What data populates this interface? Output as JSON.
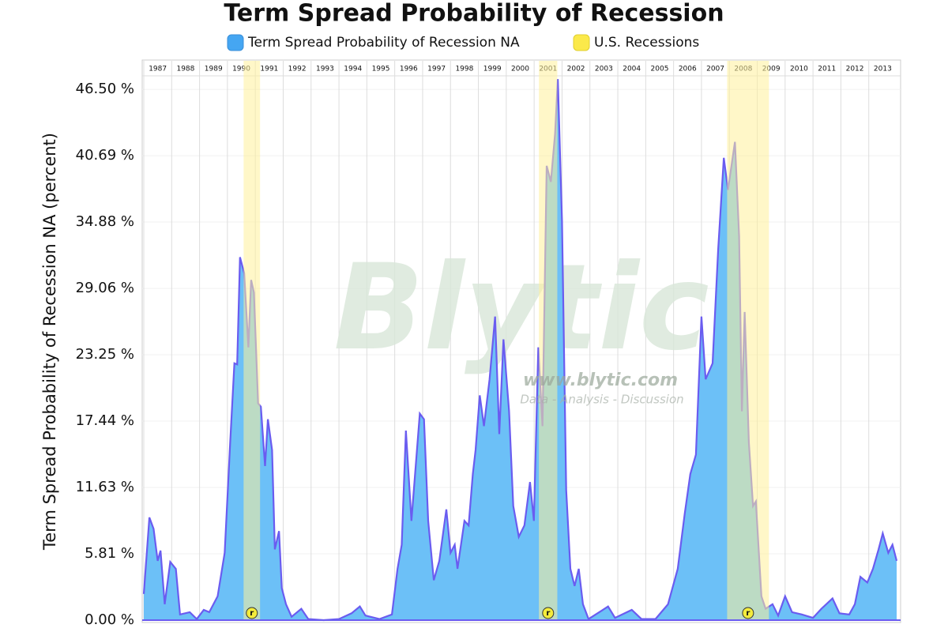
{
  "chart_data": {
    "type": "area",
    "title": "Term Spread Probability of Recession",
    "y_label": "Term Spread Probability of Recession NA (percent)",
    "x": [
      1987.0,
      1987.2,
      1987.35,
      1987.5,
      1987.6,
      1987.75,
      1987.95,
      1988.15,
      1988.3,
      1988.65,
      1988.9,
      1989.15,
      1989.35,
      1989.65,
      1989.9,
      1990.1,
      1990.25,
      1990.35,
      1990.45,
      1990.6,
      1990.75,
      1990.85,
      1990.95,
      1991.1,
      1991.2,
      1991.35,
      1991.45,
      1991.6,
      1991.7,
      1991.85,
      1991.95,
      1992.1,
      1992.3,
      1992.65,
      1992.9,
      1993.45,
      1994.0,
      1994.45,
      1994.75,
      1994.95,
      1995.45,
      1995.9,
      1996.1,
      1996.25,
      1996.4,
      1996.6,
      1996.9,
      1997.05,
      1997.2,
      1997.4,
      1997.6,
      1997.85,
      1998.0,
      1998.15,
      1998.25,
      1998.5,
      1998.65,
      1998.8,
      1998.9,
      1999.05,
      1999.2,
      1999.4,
      1999.6,
      1999.75,
      1999.9,
      2000.1,
      2000.25,
      2000.45,
      2000.65,
      2000.85,
      2000.99,
      2001.15,
      2001.3,
      2001.45,
      2001.6,
      2001.75,
      2001.85,
      2002.0,
      2002.15,
      2002.3,
      2002.45,
      2002.6,
      2002.75,
      2002.95,
      2003.65,
      2003.9,
      2004.5,
      2004.85,
      2005.35,
      2005.8,
      2006.15,
      2006.4,
      2006.6,
      2006.8,
      2007.0,
      2007.15,
      2007.4,
      2007.6,
      2007.8,
      2007.95,
      2008.2,
      2008.35,
      2008.45,
      2008.55,
      2008.7,
      2008.85,
      2008.95,
      2009.15,
      2009.3,
      2009.55,
      2009.75,
      2010.0,
      2010.25,
      2010.6,
      2011.0,
      2011.3,
      2011.7,
      2011.95,
      2012.3,
      2012.5,
      2012.7,
      2012.95,
      2013.15,
      2013.35,
      2013.5,
      2013.7,
      2013.85,
      2014.0
    ],
    "series": [
      {
        "name": "Term Spread Probability of Recession NA",
        "color": "#6cc0f7",
        "line_color": "#6a5cf0",
        "legend_color": "#45a6f2",
        "values": [
          2.3,
          9.0,
          8.0,
          5.2,
          6.1,
          1.4,
          5.1,
          4.5,
          0.5,
          0.7,
          0.1,
          0.9,
          0.7,
          2.1,
          5.9,
          15.6,
          22.5,
          22.4,
          31.8,
          30.4,
          23.9,
          29.8,
          28.7,
          19.0,
          18.7,
          13.5,
          17.6,
          14.9,
          6.2,
          7.8,
          2.8,
          1.4,
          0.3,
          1.0,
          0.1,
          0,
          0.1,
          0.6,
          1.2,
          0.4,
          0.1,
          0.5,
          4.5,
          6.6,
          16.6,
          8.7,
          18.1,
          17.6,
          8.7,
          3.5,
          5.2,
          9.7,
          5.9,
          6.6,
          4.5,
          8.7,
          8.3,
          12.8,
          14.9,
          19.7,
          17.0,
          21.1,
          26.6,
          16.3,
          24.6,
          18.3,
          10.0,
          7.3,
          8.3,
          12.1,
          8.7,
          23.9,
          17.0,
          39.8,
          38.4,
          42.6,
          47.4,
          35.0,
          11.4,
          4.5,
          3.0,
          4.5,
          1.4,
          0.1,
          1.2,
          0.2,
          0.9,
          0.1,
          0.1,
          1.4,
          4.5,
          9.3,
          12.8,
          14.5,
          26.6,
          21.1,
          22.5,
          32.5,
          40.5,
          37.7,
          41.9,
          33.6,
          18.3,
          27.0,
          15.6,
          10.0,
          10.4,
          2.1,
          1.0,
          1.4,
          0.4,
          2.1,
          0.7,
          0.5,
          0.2,
          1.0,
          1.9,
          0.6,
          0.5,
          1.4,
          3.8,
          3.3,
          4.5,
          6.2,
          7.6,
          5.9,
          6.6,
          5.2
        ]
      }
    ],
    "recessions": {
      "name": "U.S. Recessions",
      "color": "#fff09a",
      "legend_color": "#fbe94a",
      "marker_label": "r",
      "periods": [
        [
          1990.58,
          1991.17
        ],
        [
          2001.17,
          2001.83
        ],
        [
          2007.92,
          2009.42
        ]
      ]
    },
    "xlim": [
      1987,
      2014
    ],
    "xticks": [
      1987,
      1988,
      1989,
      1990,
      1991,
      1992,
      1993,
      1994,
      1995,
      1996,
      1997,
      1998,
      1999,
      2000,
      2001,
      2002,
      2003,
      2004,
      2005,
      2006,
      2007,
      2008,
      2009,
      2010,
      2011,
      2012,
      2013
    ],
    "ylim": [
      0,
      49
    ],
    "yticks": [
      {
        "value": 0,
        "label": "0.00 %"
      },
      {
        "value": 5.81,
        "label": "5.81 %"
      },
      {
        "value": 11.63,
        "label": "11.63 %"
      },
      {
        "value": 17.44,
        "label": "17.44 %"
      },
      {
        "value": 23.25,
        "label": "23.25 %"
      },
      {
        "value": 29.06,
        "label": "29.06 %"
      },
      {
        "value": 34.88,
        "label": "34.88 %"
      },
      {
        "value": 40.69,
        "label": "40.69 %"
      },
      {
        "value": 46.5,
        "label": "46.50 %"
      }
    ],
    "grid": true,
    "watermark": {
      "brand": "Blytic",
      "url": "www.blytic.com",
      "tagline": "Data - Analysis - Discussion"
    }
  }
}
